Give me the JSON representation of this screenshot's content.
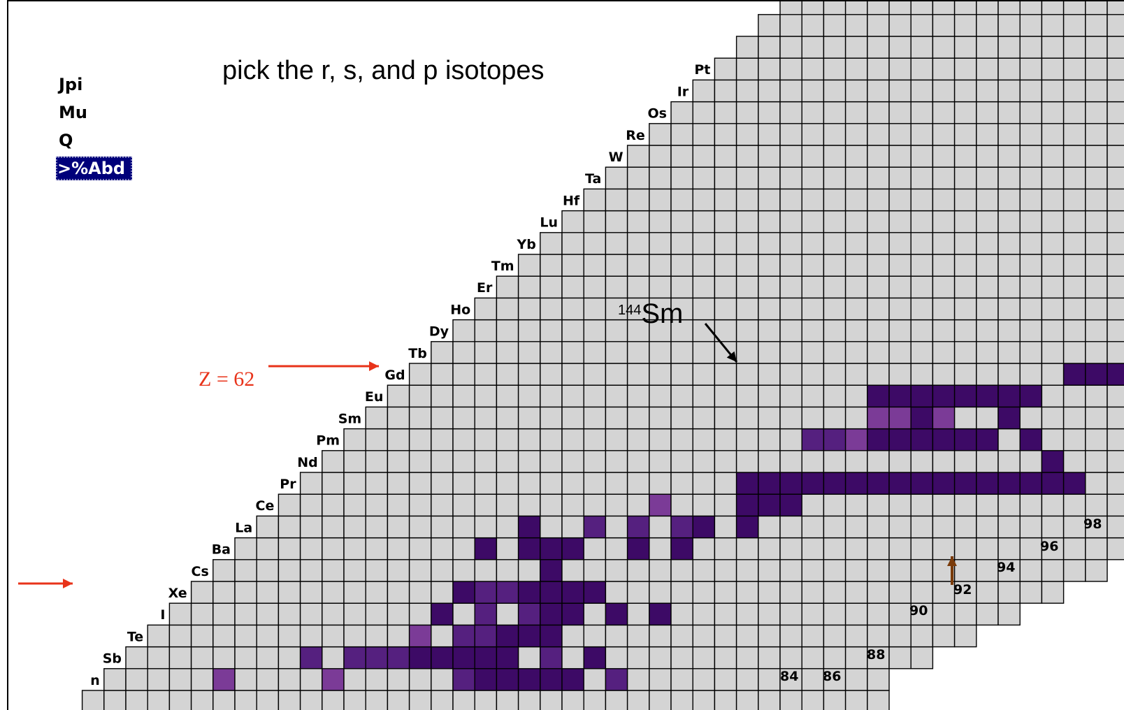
{
  "title_text": "pick the r, s, and p isotopes",
  "menu": {
    "items": [
      {
        "label": "Jpi",
        "selected": false
      },
      {
        "label": "Mu",
        "selected": false
      },
      {
        "label": "Q",
        "selected": false
      },
      {
        "label": ">%Abd",
        "selected": true
      }
    ]
  },
  "annotations": {
    "z_label": "Z = 62",
    "sm_mass": "144",
    "sm_symbol": "Sm"
  },
  "colors": {
    "cell_empty": "#d4d4d4",
    "grid_line": "#000000",
    "abundance_high": "#3d0a66",
    "abundance_mid": "#55207f",
    "abundance_low": "#7b3b97",
    "arrow_red": "#e8331a",
    "arrow_brown": "#7a3b0a",
    "menu_selected_bg": "#00007a"
  },
  "chart_data": {
    "type": "heatmap",
    "description_axes": {
      "rows": "proton number Z",
      "columns": "neutron number N"
    },
    "element_labels": [
      "n",
      "Sb",
      "Te",
      "I",
      "Xe",
      "Cs",
      "Ba",
      "La",
      "Ce",
      "Pr",
      "Nd",
      "Pm",
      "Sm",
      "Eu",
      "Gd",
      "Tb",
      "Dy",
      "Ho",
      "Er",
      "Tm",
      "Yb",
      "Lu",
      "Hf",
      "Ta",
      "W",
      "Re",
      "Os",
      "Ir",
      "Pt"
    ],
    "neutron_labels": [
      "84",
      "86",
      "88",
      "90",
      "92",
      "94",
      "96",
      "98"
    ]
  }
}
